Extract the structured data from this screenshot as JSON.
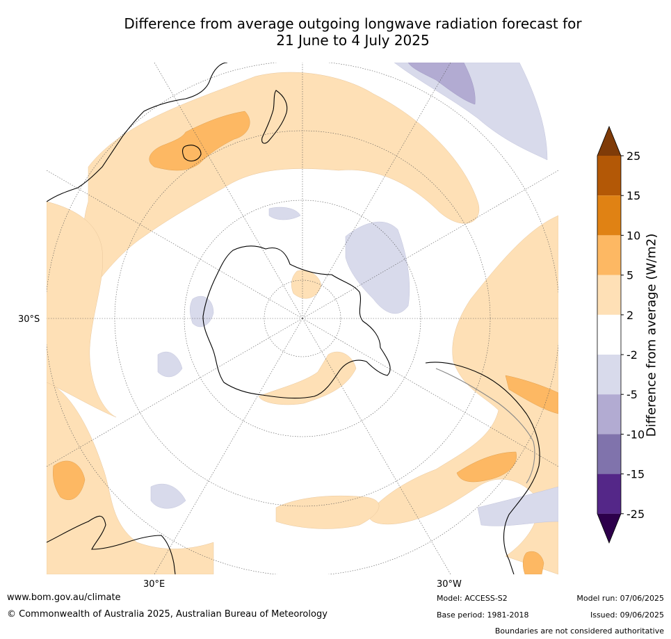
{
  "title_line1": "Difference from average outgoing longwave radiation forecast for",
  "title_line2": "21 June to 4 July 2025",
  "map": {
    "projection": "south-polar-stereographic",
    "lat_label": "30°S",
    "lon_label_left": "30°E",
    "lon_label_right": "30°W",
    "land_color": "#ffffff",
    "coast_color": "#000000"
  },
  "colorbar": {
    "title": "Difference from average (W/m2)",
    "ticks": [
      "25",
      "15",
      "10",
      "5",
      "2",
      "-2",
      "-5",
      "-10",
      "-15",
      "-25"
    ],
    "colors": [
      "#7f3b08",
      "#b35806",
      "#e08214",
      "#fdb863",
      "#fee0b6",
      "#ffffff",
      "#d8daeb",
      "#b2abd2",
      "#8073ac",
      "#542788",
      "#2d004b"
    ]
  },
  "footer": {
    "url": "www.bom.gov.au/climate",
    "copyright": "© Commonwealth of Australia 2025, Australian Bureau of Meteorology",
    "model": "Model: ACCESS-S2",
    "base_period": "Base period: 1981-2018",
    "model_run": "Model run: 07/06/2025",
    "issued": "Issued: 09/06/2025",
    "disclaimer": "Boundaries are not considered authoritative"
  }
}
